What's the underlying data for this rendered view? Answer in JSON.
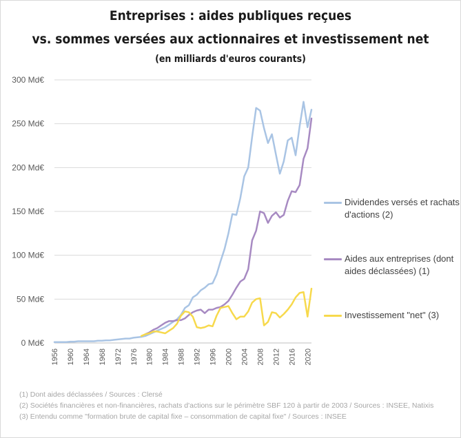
{
  "chart_data": {
    "type": "line",
    "title": "Entreprises : aides publiques reçues",
    "title_line2": "vs. sommes versées aux actionnaires et investissement net",
    "subtitle": "(en milliards d'euros courants)",
    "xlabel": "",
    "ylabel": "",
    "xlim": [
      1956,
      2021
    ],
    "ylim": [
      0,
      300
    ],
    "y_ticks": [
      0,
      50,
      100,
      150,
      200,
      250,
      300
    ],
    "y_tick_labels": [
      "0 Md€",
      "50 Md€",
      "100 Md€",
      "150 Md€",
      "200 Md€",
      "250 Md€",
      "300 Md€"
    ],
    "x_ticks": [
      1956,
      1960,
      1964,
      1968,
      1972,
      1976,
      1980,
      1984,
      1988,
      1992,
      1996,
      2000,
      2004,
      2008,
      2012,
      2016,
      2020
    ],
    "grid": true,
    "legend_position": "right",
    "series": [
      {
        "name": "Dividendes versés et rachats d'actions (2)",
        "color": "#a9c4e4",
        "x": [
          1956,
          1957,
          1958,
          1959,
          1960,
          1961,
          1962,
          1963,
          1964,
          1965,
          1966,
          1967,
          1968,
          1969,
          1970,
          1971,
          1972,
          1973,
          1974,
          1975,
          1976,
          1977,
          1978,
          1979,
          1980,
          1981,
          1982,
          1983,
          1984,
          1985,
          1986,
          1987,
          1988,
          1989,
          1990,
          1991,
          1992,
          1993,
          1994,
          1995,
          1996,
          1997,
          1998,
          1999,
          2000,
          2001,
          2002,
          2003,
          2004,
          2005,
          2006,
          2007,
          2008,
          2009,
          2010,
          2011,
          2012,
          2013,
          2014,
          2015,
          2016,
          2017,
          2018,
          2019,
          2020,
          2021
        ],
        "values": [
          1,
          1,
          1,
          1,
          1.5,
          1.5,
          2,
          2,
          2,
          2,
          2,
          2.5,
          2.5,
          3,
          3,
          3.5,
          4,
          4.5,
          5,
          5,
          6,
          6.5,
          7,
          8,
          10,
          12,
          14,
          16,
          18,
          21,
          24,
          27,
          32,
          40,
          43,
          52,
          55,
          60,
          63,
          67,
          68,
          78,
          93,
          107,
          125,
          147,
          146,
          165,
          190,
          200,
          235,
          268,
          265,
          245,
          228,
          238,
          215,
          193,
          207,
          231,
          234,
          214,
          247,
          275,
          246,
          266
        ]
      },
      {
        "name": "Aides aux entreprises (dont aides déclassées) (1)",
        "color": "#a78ac2",
        "x": [
          1979,
          1980,
          1981,
          1982,
          1983,
          1984,
          1985,
          1986,
          1987,
          1988,
          1989,
          1990,
          1991,
          1992,
          1993,
          1994,
          1995,
          1996,
          1997,
          1998,
          1999,
          2000,
          2001,
          2002,
          2003,
          2004,
          2005,
          2006,
          2007,
          2008,
          2009,
          2010,
          2011,
          2012,
          2013,
          2014,
          2015,
          2016,
          2017,
          2018,
          2019,
          2020,
          2021
        ],
        "values": [
          10,
          12,
          15,
          17,
          20,
          23,
          25,
          25,
          26,
          26,
          28,
          32,
          35,
          37,
          38,
          34,
          38,
          38,
          40,
          41,
          44,
          48,
          55,
          63,
          70,
          73,
          84,
          117,
          128,
          150,
          148,
          137,
          145,
          149,
          143,
          146,
          162,
          173,
          172,
          180,
          210,
          222,
          256
        ]
      },
      {
        "name": "Investissement \"net\" (3)",
        "color": "#f7d94c",
        "x": [
          1978,
          1979,
          1980,
          1981,
          1982,
          1983,
          1984,
          1985,
          1986,
          1987,
          1988,
          1989,
          1990,
          1991,
          1992,
          1993,
          1994,
          1995,
          1996,
          1997,
          1998,
          1999,
          2000,
          2001,
          2002,
          2003,
          2004,
          2005,
          2006,
          2007,
          2008,
          2009,
          2010,
          2011,
          2012,
          2013,
          2014,
          2015,
          2016,
          2017,
          2018,
          2019,
          2020,
          2021
        ],
        "values": [
          8,
          10,
          11,
          13,
          13,
          12,
          11,
          14,
          17,
          22,
          31,
          36,
          35,
          30,
          18,
          17,
          18,
          20,
          19,
          31,
          40,
          41,
          42,
          34,
          27,
          30,
          30,
          36,
          46,
          50,
          51,
          20,
          24,
          35,
          34,
          29,
          33,
          38,
          44,
          52,
          57,
          58,
          30,
          62
        ]
      }
    ]
  },
  "legend": {
    "items": [
      {
        "label": "Dividendes versés et rachats d'actions (2)",
        "color": "#a9c4e4"
      },
      {
        "label": "Aides aux entreprises (dont aides déclassées) (1)",
        "color": "#a78ac2"
      },
      {
        "label": "Investissement \"net\" (3)",
        "color": "#f7d94c"
      }
    ]
  },
  "footnotes": [
    "(1) Dont aides déclassées / Sources : Clersé",
    "(2) Sociétés financières et non-financières, rachats d'actions sur le périmètre SBF 120 à partir de 2003 / Sources : INSEE, Natixis",
    "(3) Entendu comme \"formation brute de capital fixe – consommation de capital fixe\" / Sources : INSEE"
  ]
}
